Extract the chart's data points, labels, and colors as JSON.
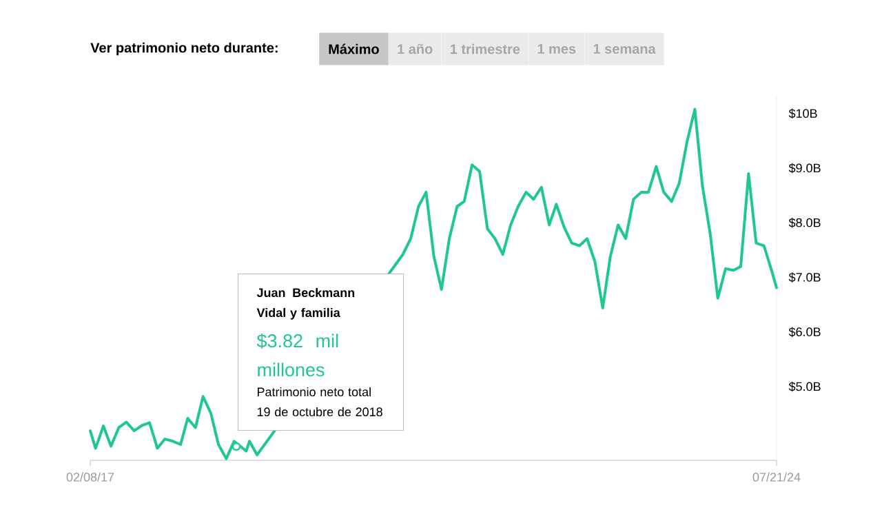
{
  "chart_data": {
    "type": "line",
    "title": "Ver patrimonio neto durante:",
    "annotations": [
      "Juan Beckmann Vidal y familia",
      "$3.82 mil millones",
      "Patrimonio neto total",
      "19 de octubre de 2018",
      "Máximo",
      "1 año",
      "1 trimestre",
      "1 mes",
      "1 semana"
    ],
    "x": [
      "2017-02-08",
      "2017-03",
      "2017-04",
      "2017-05",
      "2017-06",
      "2017-07",
      "2017-08",
      "2017-09",
      "2017-10",
      "2017-11",
      "2017-12",
      "2018-01",
      "2018-02",
      "2018-03",
      "2018-04",
      "2018-05",
      "2018-06",
      "2018-07",
      "2018-08",
      "2018-09",
      "2018-10-19",
      "2018-11",
      "2018-12",
      "2019-01",
      "2019-02",
      "2019-03",
      "2019-04",
      "2019-05",
      "2019-06",
      "2019-07",
      "2019-08",
      "2019-09",
      "2019-10",
      "2019-11",
      "2019-12",
      "2020-01",
      "2020-02",
      "2020-03",
      "2020-04",
      "2020-05",
      "2020-06",
      "2020-07",
      "2020-08",
      "2020-09",
      "2020-10",
      "2020-11",
      "2020-12",
      "2021-01",
      "2021-02",
      "2021-03",
      "2021-04",
      "2021-05",
      "2021-06",
      "2021-07",
      "2021-08",
      "2021-09",
      "2021-10",
      "2021-11",
      "2021-12",
      "2022-01",
      "2022-02",
      "2022-03",
      "2022-04",
      "2022-05",
      "2022-06",
      "2022-07",
      "2022-08",
      "2022-09",
      "2022-10",
      "2022-11",
      "2022-12",
      "2023-01",
      "2023-02",
      "2023-03",
      "2023-04",
      "2023-05",
      "2023-06",
      "2023-07",
      "2023-08",
      "2023-09",
      "2023-10",
      "2023-11",
      "2023-12",
      "2024-01",
      "2024-02",
      "2024-03",
      "2024-04",
      "2024-05",
      "2024-06",
      "2024-07",
      "2024-07-21"
    ],
    "series": [
      {
        "color": "#1fc98b",
        "values": [
          4.19,
          3.87,
          4.28,
          3.91,
          4.25,
          4.35,
          4.19,
          4.29,
          4.34,
          3.87,
          4.04,
          4.0,
          3.94,
          4.42,
          4.25,
          4.82,
          4.51,
          3.94,
          3.68,
          4.0,
          3.82,
          4.0,
          3.75,
          null,
          null,
          null,
          null,
          null,
          null,
          null,
          null,
          null,
          null,
          null,
          null,
          null,
          null,
          null,
          null,
          null,
          null,
          7.42,
          7.71,
          8.3,
          8.56,
          7.38,
          6.78,
          7.71,
          8.3,
          8.39,
          9.06,
          8.94,
          7.89,
          7.71,
          7.42,
          7.96,
          8.3,
          8.56,
          8.43,
          8.65,
          7.96,
          8.34,
          7.92,
          7.63,
          7.58,
          7.71,
          7.29,
          6.44,
          7.38,
          7.96,
          7.71,
          8.43,
          8.56,
          8.56,
          9.03,
          8.56,
          8.39,
          8.72,
          9.48,
          10.08,
          8.68,
          7.8,
          6.62,
          7.16,
          7.13,
          7.2,
          8.9,
          7.63,
          7.58,
          7.13,
          6.81
        ]
      }
    ],
    "xlim": [
      "2017-02-08",
      "2024-07-21"
    ],
    "xticks": [
      {
        "value": "2017-02-08",
        "label": "02/08/17"
      },
      {
        "value": "2024-07-21",
        "label": "07/21/24"
      }
    ],
    "ylim": [
      3.65,
      10.3
    ],
    "yticks": [
      {
        "value": 5,
        "label": "$5.0B"
      },
      {
        "value": 6,
        "label": "$6.0B"
      },
      {
        "value": 7,
        "label": "$7.0B"
      },
      {
        "value": 8,
        "label": "$8.0B"
      },
      {
        "value": 9,
        "label": "$9.0B"
      },
      {
        "value": 10,
        "label": "$10B"
      }
    ]
  }
}
